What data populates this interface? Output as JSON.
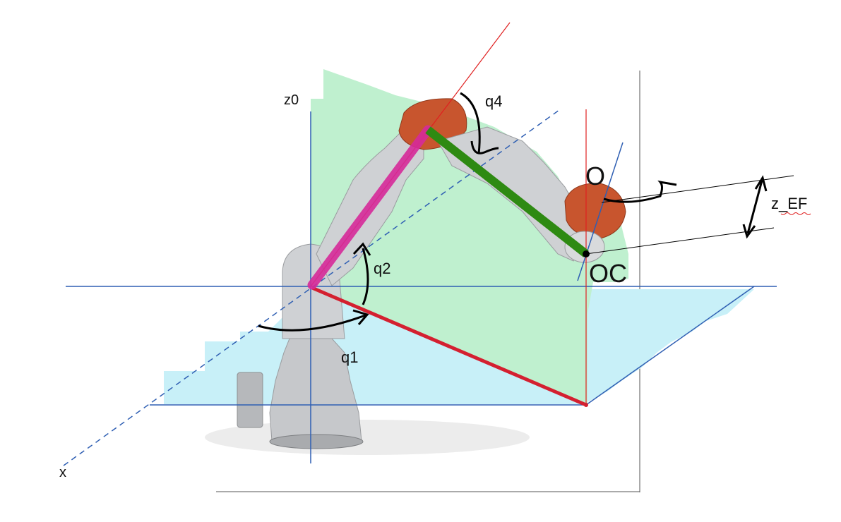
{
  "labels": {
    "z0": "z0",
    "x": "x",
    "q1": "q1",
    "q2": "q2",
    "q4": "q4",
    "O": "O",
    "OC": "OC",
    "z_ef": "z_EF"
  },
  "colors": {
    "axis_blue": "#2f5fb3",
    "link1_red": "#d42030",
    "link2_magenta": "#d62a9a",
    "link3_green": "#2e8a12",
    "plane_vertical": "#bff0cf",
    "plane_horizontal": "#c8f0f8",
    "robot_orange": "#c8552e",
    "robot_grey": "#c6c8cb"
  }
}
